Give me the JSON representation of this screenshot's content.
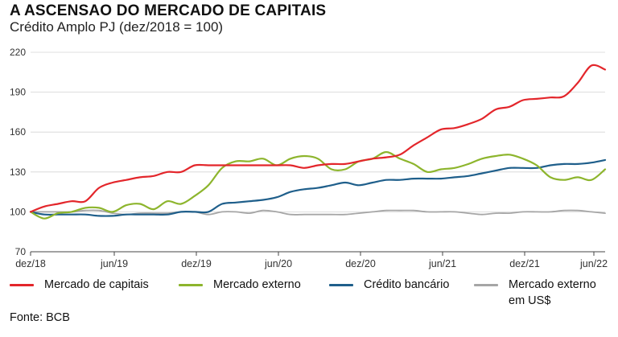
{
  "title": "A ASCENSAO DO MERCADO DE CAPITAIS",
  "subtitle": "Crédito Amplo PJ (dez/2018 = 100)",
  "source": "Fonte: BCB",
  "chart_data": {
    "type": "line",
    "x_ticks": [
      "dez/18",
      "jun/19",
      "dez/19",
      "jun/20",
      "dez/20",
      "jun/21",
      "dez/21",
      "jun/22"
    ],
    "y_ticks": [
      70,
      100,
      130,
      160,
      190,
      220
    ],
    "ylim": [
      70,
      220
    ],
    "xlim": [
      0,
      42
    ],
    "grid": true,
    "legend_position": "bottom",
    "series": [
      {
        "name": "Mercado de capitais",
        "color": "#e3262b",
        "x": [
          0,
          1,
          2,
          3,
          4,
          5,
          6,
          7,
          8,
          9,
          10,
          11,
          12,
          13,
          14,
          15,
          16,
          17,
          18,
          19,
          20,
          21,
          22,
          23,
          24,
          25,
          26,
          27,
          28,
          29,
          30,
          31,
          32,
          33,
          34,
          35,
          36,
          37,
          38,
          39,
          40,
          41,
          42
        ],
        "values": [
          100,
          104,
          106,
          108,
          108,
          118,
          122,
          124,
          126,
          127,
          130,
          130,
          135,
          135,
          135,
          135,
          135,
          135,
          135,
          135,
          133,
          135,
          136,
          136,
          138,
          140,
          141,
          143,
          150,
          156,
          162,
          163,
          166,
          170,
          177,
          179,
          184,
          185,
          186,
          187,
          197,
          210,
          207
        ]
      },
      {
        "name": "Mercado externo",
        "color": "#8db52d",
        "x": [
          0,
          1,
          2,
          3,
          4,
          5,
          6,
          7,
          8,
          9,
          10,
          11,
          12,
          13,
          14,
          15,
          16,
          17,
          18,
          19,
          20,
          21,
          22,
          23,
          24,
          25,
          26,
          27,
          28,
          29,
          30,
          31,
          32,
          33,
          34,
          35,
          36,
          37,
          38,
          39,
          40,
          41,
          42
        ],
        "values": [
          100,
          95,
          99,
          100,
          103,
          103,
          100,
          105,
          106,
          102,
          108,
          106,
          112,
          120,
          133,
          138,
          138,
          140,
          135,
          140,
          142,
          140,
          132,
          132,
          138,
          140,
          145,
          140,
          136,
          130,
          132,
          133,
          136,
          140,
          142,
          143,
          140,
          135,
          126,
          124,
          126,
          124,
          132
        ]
      },
      {
        "name": "Crédito bancário",
        "color": "#1f5f8b",
        "x": [
          0,
          1,
          2,
          3,
          4,
          5,
          6,
          7,
          8,
          9,
          10,
          11,
          12,
          13,
          14,
          15,
          16,
          17,
          18,
          19,
          20,
          21,
          22,
          23,
          24,
          25,
          26,
          27,
          28,
          29,
          30,
          31,
          32,
          33,
          34,
          35,
          36,
          37,
          38,
          39,
          40,
          41,
          42
        ],
        "values": [
          100,
          98,
          98,
          98,
          98,
          97,
          97,
          98,
          98,
          98,
          98,
          100,
          100,
          100,
          106,
          107,
          108,
          109,
          111,
          115,
          117,
          118,
          120,
          122,
          120,
          122,
          124,
          124,
          125,
          125,
          125,
          126,
          127,
          129,
          131,
          133,
          133,
          133,
          135,
          136,
          136,
          137,
          139
        ]
      },
      {
        "name": "Mercado externo em US$",
        "color": "#a6a6a6",
        "x": [
          0,
          1,
          2,
          3,
          4,
          5,
          6,
          7,
          8,
          9,
          10,
          11,
          12,
          13,
          14,
          15,
          16,
          17,
          18,
          19,
          20,
          21,
          22,
          23,
          24,
          25,
          26,
          27,
          28,
          29,
          30,
          31,
          32,
          33,
          34,
          35,
          36,
          37,
          38,
          39,
          40,
          41,
          42
        ],
        "values": [
          100,
          100,
          100,
          100,
          101,
          101,
          99,
          98,
          99,
          99,
          99,
          100,
          100,
          98,
          100,
          100,
          99,
          101,
          100,
          98,
          98,
          98,
          98,
          98,
          99,
          100,
          101,
          101,
          101,
          100,
          100,
          100,
          99,
          98,
          99,
          99,
          100,
          100,
          100,
          101,
          101,
          100,
          99
        ]
      }
    ]
  },
  "legend": [
    {
      "label": "Mercado de capitais",
      "color": "#e3262b"
    },
    {
      "label": "Mercado externo",
      "color": "#8db52d"
    },
    {
      "label": "Crédito bancário",
      "color": "#1f5f8b"
    },
    {
      "label": "Mercado externo em US$",
      "color": "#a6a6a6"
    }
  ]
}
